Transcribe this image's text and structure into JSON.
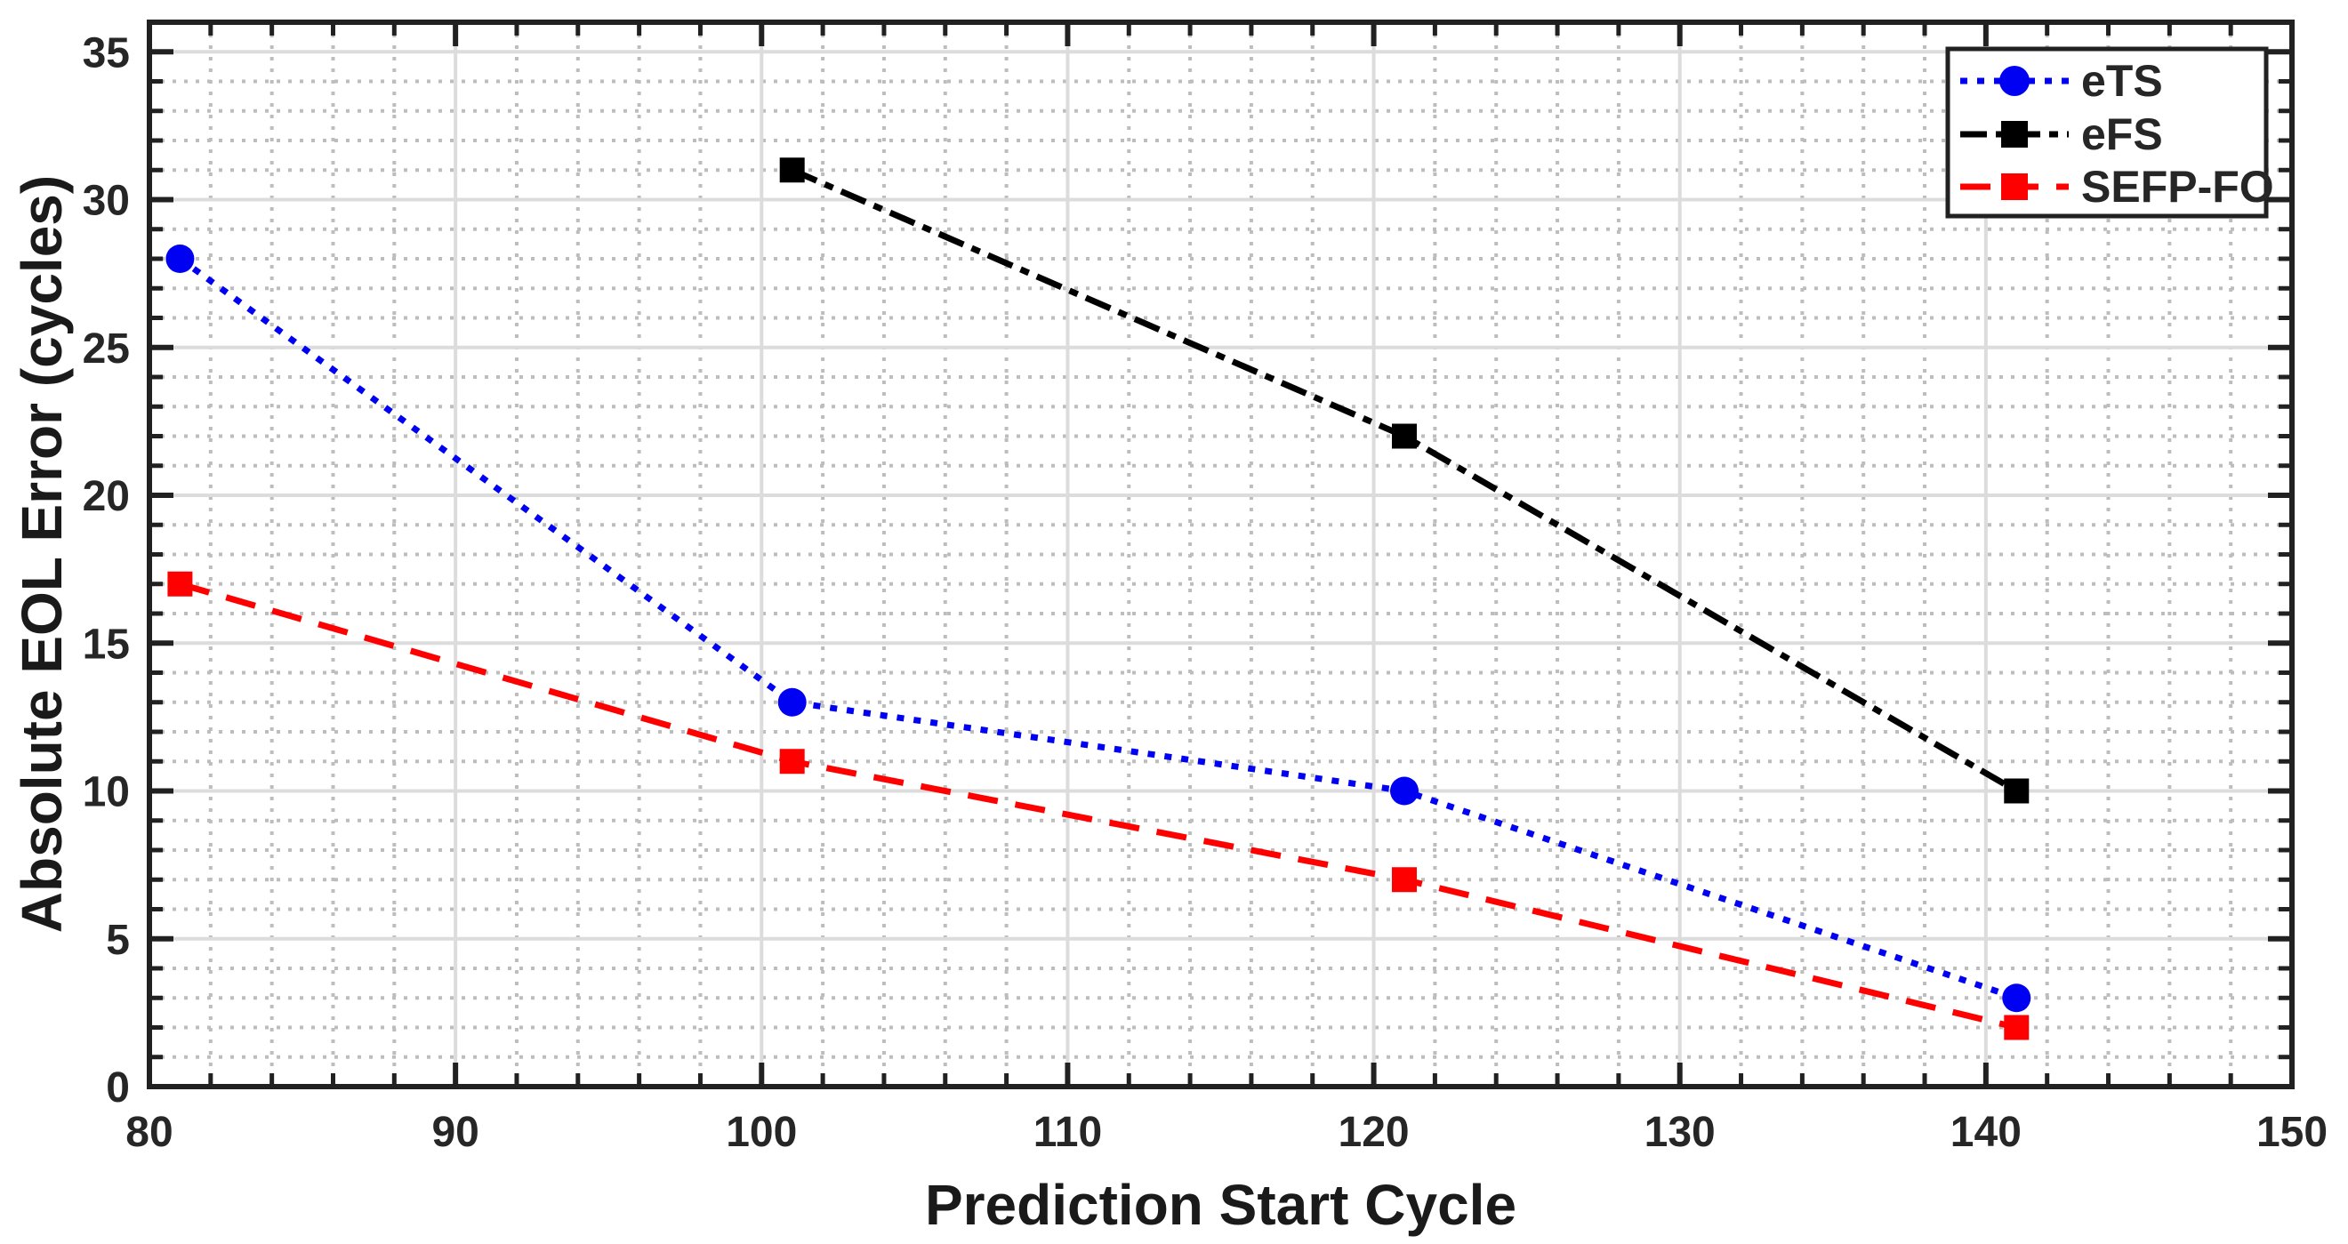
{
  "chart_data": {
    "type": "line",
    "title": "",
    "xlabel": "Prediction Start Cycle",
    "ylabel": "Absolute EOL Error (cycles)",
    "xlim": [
      80,
      150
    ],
    "ylim": [
      0,
      36
    ],
    "x_major_ticks": [
      80,
      90,
      100,
      110,
      120,
      130,
      140,
      150
    ],
    "y_major_ticks": [
      0,
      5,
      10,
      15,
      20,
      25,
      30,
      35
    ],
    "x_minor_step": 2,
    "y_minor_step": 1,
    "grid": "major-solid + minor-dotted",
    "tick_direction": "in",
    "box": true,
    "legend_position": "top-right",
    "series": [
      {
        "name": "eTS",
        "color": "#0000f2",
        "line_style": "dotted",
        "marker": "circle",
        "x": [
          81,
          101,
          121,
          141
        ],
        "y": [
          28,
          13,
          10,
          3
        ]
      },
      {
        "name": "eFS",
        "color": "#000000",
        "line_style": "dash-dot",
        "marker": "square",
        "x": [
          101,
          121,
          141
        ],
        "y": [
          31,
          22,
          10
        ]
      },
      {
        "name": "SEFP-FO",
        "color": "#ff0000",
        "line_style": "dashed",
        "marker": "square",
        "x": [
          81,
          101,
          121,
          141
        ],
        "y": [
          17,
          11,
          7,
          2
        ]
      }
    ]
  },
  "style_colors": {
    "axis": "#212121",
    "tick_label": "#262626",
    "major_grid": "#dcdcdc",
    "minor_grid": "#bdbdbd",
    "background": "#ffffff"
  }
}
